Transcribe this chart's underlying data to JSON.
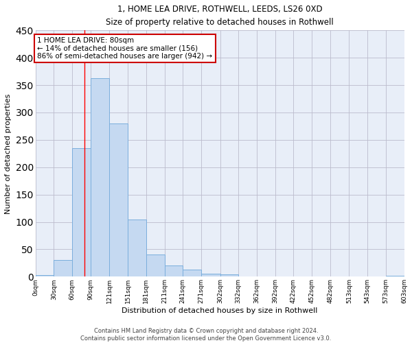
{
  "title": "1, HOME LEA DRIVE, ROTHWELL, LEEDS, LS26 0XD",
  "subtitle": "Size of property relative to detached houses in Rothwell",
  "xlabel": "Distribution of detached houses by size in Rothwell",
  "ylabel": "Number of detached properties",
  "bar_color": "#c5d9f1",
  "bar_edge_color": "#7aaedc",
  "background_color": "#e8eef8",
  "grid_color": "#bbbbcc",
  "bin_edges": [
    0,
    30,
    60,
    90,
    121,
    151,
    181,
    211,
    241,
    271,
    302,
    332,
    362,
    392,
    422,
    452,
    482,
    513,
    543,
    573,
    603
  ],
  "bin_labels": [
    "0sqm",
    "30sqm",
    "60sqm",
    "90sqm",
    "121sqm",
    "151sqm",
    "181sqm",
    "211sqm",
    "241sqm",
    "271sqm",
    "302sqm",
    "332sqm",
    "362sqm",
    "392sqm",
    "422sqm",
    "452sqm",
    "482sqm",
    "513sqm",
    "543sqm",
    "573sqm",
    "603sqm"
  ],
  "counts": [
    3,
    30,
    235,
    362,
    280,
    105,
    40,
    20,
    13,
    6,
    4,
    1,
    0,
    0,
    0,
    1,
    0,
    0,
    0,
    2
  ],
  "property_size": 80,
  "annotation_line1": "1 HOME LEA DRIVE: 80sqm",
  "annotation_line2": "← 14% of detached houses are smaller (156)",
  "annotation_line3": "86% of semi-detached houses are larger (942) →",
  "annotation_box_color": "#ffffff",
  "annotation_box_edge": "#cc0000",
  "red_line_x": 80,
  "ylim": [
    0,
    450
  ],
  "yticks": [
    0,
    50,
    100,
    150,
    200,
    250,
    300,
    350,
    400,
    450
  ],
  "footer_line1": "Contains HM Land Registry data © Crown copyright and database right 2024.",
  "footer_line2": "Contains public sector information licensed under the Open Government Licence v3.0."
}
